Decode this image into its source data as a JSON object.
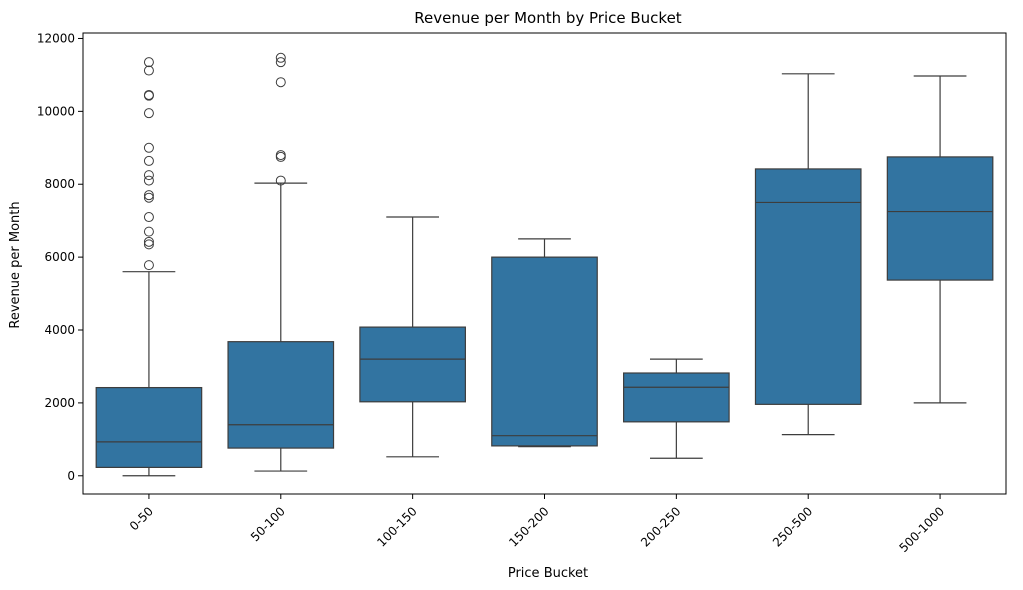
{
  "chart_data": {
    "type": "box",
    "title": "Revenue per Month by Price Bucket",
    "xlabel": "Price Bucket",
    "ylabel": "Revenue per Month",
    "ylim": [
      -500,
      12150
    ],
    "yticks": [
      0,
      2000,
      4000,
      6000,
      8000,
      10000,
      12000
    ],
    "grid": false,
    "color": "#3274a1",
    "line_color": "#3d3d3d",
    "categories": [
      "0-50",
      "50-100",
      "100-150",
      "150-200",
      "200-250",
      "250-500",
      "500-1000"
    ],
    "boxes": [
      {
        "q1": 230,
        "median": 930,
        "q3": 2420,
        "whisker_low": 0,
        "whisker_high": 5600,
        "outliers": [
          5780,
          6350,
          6420,
          6700,
          7100,
          7630,
          7700,
          8100,
          8250,
          8640,
          9000,
          9950,
          10430,
          10450,
          11120,
          11350
        ]
      },
      {
        "q1": 760,
        "median": 1400,
        "q3": 3680,
        "whisker_low": 130,
        "whisker_high": 8030,
        "outliers": [
          8100,
          8750,
          8800,
          10800,
          11350,
          11470
        ]
      },
      {
        "q1": 2030,
        "median": 3200,
        "q3": 4080,
        "whisker_low": 520,
        "whisker_high": 7100,
        "outliers": []
      },
      {
        "q1": 820,
        "median": 1100,
        "q3": 6000,
        "whisker_low": 800,
        "whisker_high": 6500,
        "outliers": []
      },
      {
        "q1": 1480,
        "median": 2430,
        "q3": 2820,
        "whisker_low": 480,
        "whisker_high": 3200,
        "outliers": []
      },
      {
        "q1": 1960,
        "median": 7500,
        "q3": 8420,
        "whisker_low": 1130,
        "whisker_high": 11030,
        "outliers": []
      },
      {
        "q1": 5370,
        "median": 7250,
        "q3": 8750,
        "whisker_low": 2000,
        "whisker_high": 10970,
        "outliers": []
      }
    ]
  }
}
